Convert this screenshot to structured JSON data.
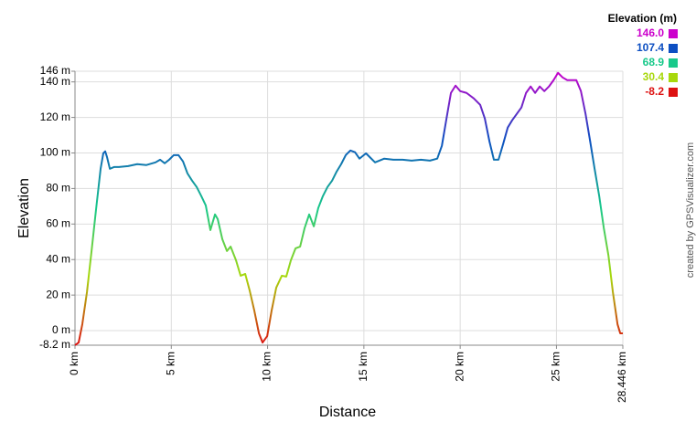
{
  "chart_data": {
    "type": "line",
    "y_label": "Elevation",
    "x_label": "Distance",
    "credit": "created by GPSVisualizer.com",
    "color_legend": {
      "title": "Elevation (m)",
      "items": [
        {
          "value": 146,
          "label": "146.0",
          "color": "#cc00cc"
        },
        {
          "value": 107.4,
          "label": "107.4",
          "color": "#0d4fc2"
        },
        {
          "value": 68.9,
          "label": "68.9",
          "color": "#18c98a"
        },
        {
          "value": 30.4,
          "label": "30.4",
          "color": "#a8d80c"
        },
        {
          "value": -8.2,
          "label": "-8.2",
          "color": "#dd1111"
        }
      ]
    },
    "grid": true,
    "xlim": [
      0,
      28.446
    ],
    "xticks": [
      {
        "value": 0,
        "label": "0 km"
      },
      {
        "value": 5,
        "label": "5 km"
      },
      {
        "value": 10,
        "label": "10 km"
      },
      {
        "value": 15,
        "label": "15 km"
      },
      {
        "value": 20,
        "label": "20 km"
      },
      {
        "value": 25,
        "label": "25 km"
      },
      {
        "value": 28.446,
        "label": "28.446 km"
      }
    ],
    "ylim": [
      -8.2,
      146
    ],
    "yticks": [
      {
        "value": -8.2,
        "label": "-8.2 m"
      },
      {
        "value": 0,
        "label": "0 m"
      },
      {
        "value": 20,
        "label": "20 m"
      },
      {
        "value": 40,
        "label": "40 m"
      },
      {
        "value": 60,
        "label": "60 m"
      },
      {
        "value": 80,
        "label": "80 m"
      },
      {
        "value": 100,
        "label": "100 m"
      },
      {
        "value": 120,
        "label": "120 m"
      },
      {
        "value": 140,
        "label": "140 m"
      },
      {
        "value": 146,
        "label": "146 m"
      }
    ],
    "x": [
      0,
      0.19,
      0.38,
      0.62,
      0.86,
      1.09,
      1.33,
      1.47,
      1.57,
      1.66,
      1.81,
      2.04,
      2.28,
      2.76,
      3.23,
      3.71,
      4.18,
      4.42,
      4.66,
      4.89,
      5.13,
      5.37,
      5.61,
      5.84,
      6.08,
      6.32,
      6.56,
      6.79,
      7.03,
      7.27,
      7.41,
      7.65,
      7.89,
      8.08,
      8.36,
      8.6,
      8.84,
      9.07,
      9.31,
      9.55,
      9.74,
      9.98,
      10.21,
      10.45,
      10.74,
      10.97,
      11.21,
      11.45,
      11.69,
      11.92,
      12.16,
      12.4,
      12.63,
      12.87,
      13.11,
      13.35,
      13.59,
      13.82,
      14.06,
      14.3,
      14.54,
      14.77,
      15.11,
      15.34,
      15.58,
      16.06,
      16.53,
      17.01,
      17.48,
      17.96,
      18.43,
      18.81,
      19.05,
      19.29,
      19.52,
      19.76,
      20.0,
      20.33,
      20.71,
      21.04,
      21.28,
      21.52,
      21.75,
      21.99,
      22.23,
      22.47,
      22.7,
      22.94,
      23.18,
      23.42,
      23.66,
      23.89,
      24.13,
      24.37,
      24.61,
      24.85,
      25.08,
      25.32,
      25.56,
      25.8,
      26.03,
      26.27,
      26.51,
      26.75,
      26.98,
      27.22,
      27.46,
      27.7,
      27.93,
      28.17,
      28.31,
      28.446
    ],
    "values": [
      -8.2,
      -6.7,
      3.6,
      21.6,
      44.8,
      67.9,
      91.1,
      99.8,
      100.9,
      97.8,
      91.1,
      92.1,
      92.1,
      92.6,
      93.7,
      93.2,
      94.7,
      96.2,
      94.2,
      96.2,
      98.8,
      98.8,
      95.2,
      88.5,
      84.4,
      80.8,
      75.7,
      70.5,
      56.6,
      65.4,
      62.8,
      51.5,
      44.8,
      47.3,
      39.6,
      30.9,
      31.9,
      22.6,
      11.3,
      -1.5,
      -6.7,
      -3.1,
      11.3,
      24.2,
      30.9,
      30.4,
      39.6,
      46.3,
      47.3,
      57.6,
      65.4,
      58.7,
      69.0,
      75.7,
      80.8,
      84.4,
      89.6,
      93.7,
      98.8,
      101.4,
      100.4,
      96.8,
      99.8,
      97.3,
      94.7,
      96.8,
      96.2,
      96.2,
      95.7,
      96.2,
      95.7,
      96.8,
      104.0,
      119.4,
      133.8,
      137.9,
      134.8,
      133.8,
      130.7,
      127.1,
      119.4,
      106.5,
      96.2,
      96.2,
      105.0,
      114.3,
      118.4,
      122.0,
      125.6,
      133.8,
      137.4,
      133.8,
      137.4,
      134.8,
      137.4,
      141.0,
      145.1,
      142.5,
      141.0,
      141.0,
      141.0,
      134.8,
      122.0,
      106.5,
      91.1,
      75.7,
      57.6,
      42.2,
      21.6,
      3.6,
      -1.5,
      -1.5
    ]
  }
}
